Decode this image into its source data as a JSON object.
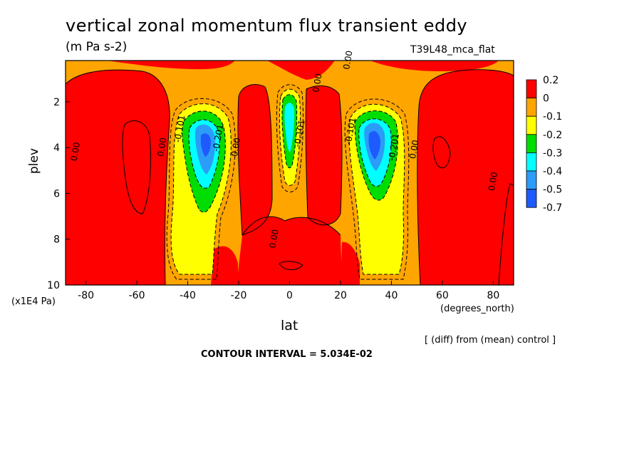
{
  "chart_data": {
    "type": "heatmap",
    "title": "vertical zonal momentum flux transient eddy",
    "subtitle": "(m Pa s-2)",
    "run_name": "T39L48_mca_flat",
    "xlabel": "lat",
    "xunits": "(degrees_north)",
    "ylabel": "plev",
    "yunits": "(x1E4 Pa)",
    "xlim": [
      -88,
      88
    ],
    "ylim": [
      10,
      0.2
    ],
    "x_ticks": [
      -80,
      -60,
      -40,
      -20,
      0,
      20,
      40,
      60,
      80
    ],
    "y_ticks": [
      2,
      4,
      6,
      8,
      10
    ],
    "legend": {
      "placement": "right",
      "labels": [
        "0.2",
        "0",
        "-0.1",
        "-0.2",
        "-0.3",
        "-0.4",
        "-0.5",
        "-0.7"
      ],
      "colors": [
        "#ff0000",
        "#ffa500",
        "#ffff00",
        "#00dd00",
        "#00ffff",
        "#2b9cf7",
        "#1e5bff"
      ]
    },
    "contour_labels": [
      {
        "text": "0.00",
        "lat": -83,
        "plev": 4.2
      },
      {
        "text": "0.00",
        "lat": -49,
        "plev": 4.0
      },
      {
        "text": "-0.101",
        "lat": -42,
        "plev": 3.2
      },
      {
        "text": "-0.201",
        "lat": -27,
        "plev": 3.6
      },
      {
        "text": "0.00",
        "lat": -20,
        "plev": 4.0
      },
      {
        "text": "0.00",
        "lat": -5,
        "plev": 8.0
      },
      {
        "text": "-0.101",
        "lat": 5,
        "plev": 3.4
      },
      {
        "text": "0.00",
        "lat": 12,
        "plev": 1.2
      },
      {
        "text": "0.00",
        "lat": 24,
        "plev": 0.2
      },
      {
        "text": "-0.101",
        "lat": 25,
        "plev": 3.3
      },
      {
        "text": "-0.201",
        "lat": 42,
        "plev": 4.0
      },
      {
        "text": "0.00",
        "lat": 50,
        "plev": 4.1
      },
      {
        "text": "0.00",
        "lat": 81,
        "plev": 5.5
      }
    ],
    "diff_note": "[ (diff) from (mean) control ]",
    "contour_interval": "CONTOUR INTERVAL = 5.034E-02"
  }
}
